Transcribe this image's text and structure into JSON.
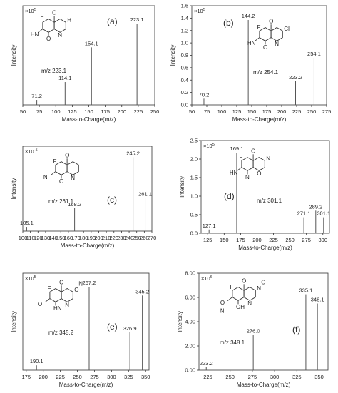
{
  "chart_data": [
    {
      "type": "bar",
      "panel_label": "(a)",
      "scale_label": "×10",
      "scale_exp": "5",
      "mz_label": "m/z 223.1",
      "xlabel": "Mass-to-Charge(m/z)",
      "ylabel": "Intensity",
      "xlim": [
        50,
        250
      ],
      "xticks": [
        "50",
        "75",
        "100",
        "125",
        "150",
        "175",
        "200",
        "225",
        "250"
      ],
      "ylim": [
        0,
        1
      ],
      "yticks": [],
      "peaks": [
        {
          "x": 71.2,
          "y": 0.05,
          "label": "71.2"
        },
        {
          "x": 114.1,
          "y": 0.23,
          "label": "114.1"
        },
        {
          "x": 154.1,
          "y": 0.58,
          "label": "154.1"
        },
        {
          "x": 223.1,
          "y": 0.82,
          "label": "223.1"
        }
      ],
      "molecule_labels": [
        "F",
        "O",
        "HN",
        "O",
        "N",
        "H"
      ]
    },
    {
      "type": "bar",
      "panel_label": "(b)",
      "scale_label": "×10",
      "scale_exp": "5",
      "mz_label": "m/z 254.1",
      "xlabel": "Mass-to-Charge(m/z)",
      "ylabel": "Intensity",
      "xlim": [
        50,
        275
      ],
      "xticks": [
        "50",
        "75",
        "100",
        "125",
        "150",
        "175",
        "200",
        "225",
        "250",
        "275"
      ],
      "ylim": [
        0,
        1.6
      ],
      "yticks": [
        "0.0",
        "0.2",
        "0.4",
        "0.6",
        "0.8",
        "1.0",
        "1.2",
        "1.4",
        "1.6"
      ],
      "peaks": [
        {
          "x": 70.2,
          "y": 0.1,
          "label": "70.2"
        },
        {
          "x": 144.2,
          "y": 1.37,
          "label": "144.2"
        },
        {
          "x": 223.2,
          "y": 0.38,
          "label": "223.2"
        },
        {
          "x": 254.1,
          "y": 0.76,
          "label": "254.1"
        }
      ],
      "molecule_labels": [
        "F",
        "O",
        "HN",
        "O",
        "N",
        "Cl"
      ]
    },
    {
      "type": "bar",
      "panel_label": "(c)",
      "scale_label": "×10",
      "scale_exp": "-5",
      "mz_label": "m/z 261.1",
      "xlabel": "Mass-to-Charge(m/z)",
      "ylabel": "Intensity",
      "xlim": [
        100,
        270
      ],
      "xticks": [
        "100",
        "110",
        "120",
        "130",
        "140",
        "150",
        "160",
        "170",
        "180",
        "190",
        "200",
        "210",
        "220",
        "230",
        "240",
        "250",
        "260",
        "270"
      ],
      "ylim": [
        0,
        1
      ],
      "yticks": [],
      "peaks": [
        {
          "x": 105.1,
          "y": 0.05,
          "label": "105.1"
        },
        {
          "x": 168.2,
          "y": 0.27,
          "label": "168.2"
        },
        {
          "x": 245.2,
          "y": 0.87,
          "label": "245.2"
        },
        {
          "x": 261.1,
          "y": 0.39,
          "label": "261.1"
        }
      ],
      "molecule_labels": [
        "F",
        "O",
        "N",
        "O",
        "N"
      ]
    },
    {
      "type": "bar",
      "panel_label": "(d)",
      "scale_label": "×10",
      "scale_exp": "5",
      "mz_label": "m/z 301.1",
      "xlabel": "Mass-to-Charge(m/z)",
      "ylabel": "Intensity",
      "xlim": [
        115,
        310
      ],
      "xticks": [
        "125",
        "150",
        "175",
        "200",
        "225",
        "250",
        "275",
        "300"
      ],
      "ylim": [
        0,
        2.5
      ],
      "yticks": [
        "0.0",
        "0.5",
        "1.0",
        "1.5",
        "2.0",
        "2.5"
      ],
      "peaks": [
        {
          "x": 127.1,
          "y": 0.1,
          "label": "127.1"
        },
        {
          "x": 169.1,
          "y": 2.17,
          "label": "169.1"
        },
        {
          "x": 271.1,
          "y": 0.43,
          "label": "271.1"
        },
        {
          "x": 289.2,
          "y": 0.61,
          "label": "289.2"
        },
        {
          "x": 301.1,
          "y": 0.43,
          "label": "301.1"
        }
      ],
      "molecule_labels": [
        "F",
        "O",
        "HN",
        "N",
        "O",
        "N"
      ]
    },
    {
      "type": "bar",
      "panel_label": "(e)",
      "scale_label": "×10",
      "scale_exp": "5",
      "mz_label": "m/z 345.2",
      "xlabel": "Mass-to-Charge(m/z)",
      "ylabel": "Intensity",
      "xlim": [
        170,
        355
      ],
      "xticks": [
        "175",
        "200",
        "225",
        "250",
        "275",
        "300",
        "325",
        "350"
      ],
      "ylim": [
        0,
        1
      ],
      "yticks": [],
      "peaks": [
        {
          "x": 190.1,
          "y": 0.05,
          "label": "190.1"
        },
        {
          "x": 267.2,
          "y": 0.86,
          "label": "267.2"
        },
        {
          "x": 326.9,
          "y": 0.39,
          "label": "326.9"
        },
        {
          "x": 345.2,
          "y": 0.77,
          "label": "345.2"
        }
      ],
      "molecule_labels": [
        "F",
        "O",
        "O",
        "HN",
        "N",
        "O",
        "N"
      ]
    },
    {
      "type": "bar",
      "panel_label": "(f)",
      "scale_label": "×10",
      "scale_exp": "6",
      "mz_label": "m/z 348.1",
      "xlabel": "Mass-to-Charge(m/z)",
      "ylabel": "Intensity",
      "xlim": [
        215,
        360
      ],
      "xticks": [
        "225",
        "250",
        "275",
        "300",
        "325",
        "350"
      ],
      "ylim": [
        0,
        8
      ],
      "yticks": [
        "0.00",
        "2.00",
        "4.00",
        "6.00",
        "8.00"
      ],
      "peaks": [
        {
          "x": 223.2,
          "y": 0.25,
          "label": "223.2"
        },
        {
          "x": 276.0,
          "y": 2.92,
          "label": "276.0"
        },
        {
          "x": 335.1,
          "y": 6.26,
          "label": "335.1"
        },
        {
          "x": 348.1,
          "y": 5.5,
          "label": "348.1"
        }
      ],
      "molecule_labels": [
        "F",
        "O",
        "O",
        "OH",
        "N",
        "N",
        "O",
        "N"
      ]
    }
  ]
}
